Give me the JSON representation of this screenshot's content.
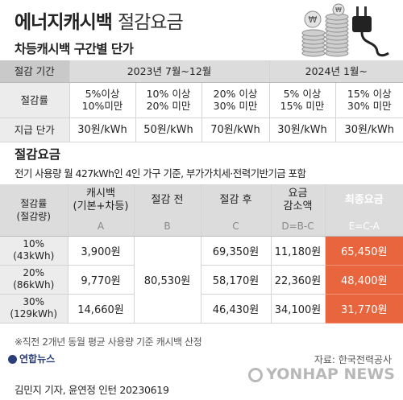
{
  "header": {
    "title": "에너지캐시백",
    "subtitle": "절감요금"
  },
  "icon_coin_symbol": "₩",
  "section1": {
    "title": "차등캐시백 구간별 단가",
    "period_label": "절감 기간",
    "period_2023": "2023년 7월~12월",
    "period_2024": "2024년 1월~",
    "rate_label": "절감률",
    "rates": [
      [
        "5%이상",
        "10%미만"
      ],
      [
        "10% 이상",
        "20% 미만"
      ],
      [
        "20% 이상",
        "30% 미만"
      ],
      [
        "5% 이상",
        "15% 미만"
      ],
      [
        "15% 이상",
        "30% 미만"
      ]
    ],
    "price_label": "지급 단가",
    "prices": [
      "30원/kWh",
      "50원/kWh",
      "70원/kWh",
      "30원/kWh",
      "30원/kWh"
    ]
  },
  "section2": {
    "title": "절감요금",
    "desc": "전기 사용량 월 427kWh인 4인 가구 기준, 부가가치세·전력기반기금 포함",
    "headers": [
      [
        "절감률",
        "(절감량)"
      ],
      [
        "캐시백",
        "(기본+차등)"
      ],
      [
        "절감 전"
      ],
      [
        "절감 후"
      ],
      [
        "요금",
        "감소액"
      ],
      [
        "최종요금"
      ]
    ],
    "codes": [
      "",
      "A",
      "B",
      "C",
      "D=B-C",
      "E=C-A"
    ],
    "before": "80,530원",
    "rows": [
      {
        "rate": "10%",
        "amount": "(43kWh)",
        "cashback": "3,900원",
        "after": "69,350원",
        "reduction": "11,180원",
        "final": "65,450원"
      },
      {
        "rate": "20%",
        "amount": "(86kWh)",
        "cashback": "9,770원",
        "after": "58,170원",
        "reduction": "22,360원",
        "final": "48,400원"
      },
      {
        "rate": "30%",
        "amount": "(129kWh)",
        "cashback": "14,660원",
        "after": "46,430원",
        "reduction": "34,100원",
        "final": "31,770원"
      }
    ]
  },
  "footer": {
    "note": "※직전 2개년 동월 평균 사용량 기준 캐시백 산정",
    "logo": "연합뉴스",
    "source": "자료: 한국전력공사",
    "watermark": "YONHAP NEWS",
    "byline": "김민지 기자, 윤연정 인턴  20230619"
  },
  "colors": {
    "accent": "#e9653d",
    "header_gray": "#dcdcdc",
    "label_gray": "#ececec"
  }
}
